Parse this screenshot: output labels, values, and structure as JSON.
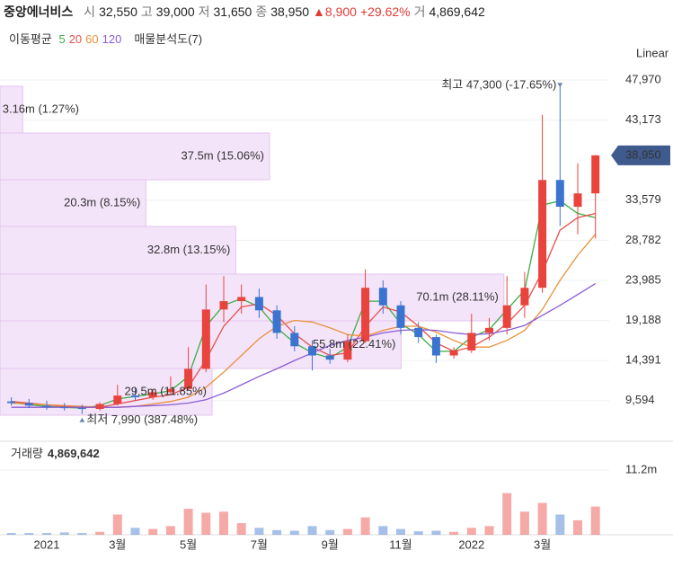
{
  "header": {
    "name": "중앙에너비스",
    "quotes": [
      {
        "label": "시",
        "value": "32,550"
      },
      {
        "label": "고",
        "value": "39,000"
      },
      {
        "label": "저",
        "value": "31,650"
      },
      {
        "label": "종",
        "value": "38,950"
      }
    ],
    "change": "▲8,900",
    "change_pct": "+29.62%",
    "volume": {
      "label": "거",
      "value": "4,869,642"
    }
  },
  "chart_data": {
    "type": "candlestick",
    "ma_label": "이동평균",
    "profile_label": "매물분석도(7)",
    "scale_label": "Linear",
    "categories": [
      null,
      null,
      "2021",
      null,
      null,
      null,
      "3월",
      null,
      null,
      null,
      "5월",
      null,
      null,
      null,
      "7월",
      null,
      null,
      null,
      "9월",
      null,
      null,
      null,
      "11월",
      null,
      null,
      null,
      "2022",
      null,
      null,
      null,
      "3월",
      null,
      null,
      null
    ],
    "up_color": "#e8433d",
    "down_color": "#3b74d0",
    "candles": {
      "open": [
        9500,
        9300,
        9000,
        8800,
        8700,
        8600,
        9200,
        10200,
        10000,
        10600,
        11000,
        13400,
        20500,
        21500,
        22000,
        20400,
        17700,
        16100,
        15000,
        14500,
        16700,
        23100,
        21000,
        18300,
        17200,
        15000,
        15600,
        17700,
        18300,
        21000,
        23100,
        36000,
        32800,
        34400
      ],
      "high": [
        10000,
        9800,
        9600,
        9300,
        9100,
        9400,
        11500,
        11200,
        11000,
        12500,
        16000,
        23500,
        24500,
        23500,
        23000,
        21000,
        18500,
        16800,
        15800,
        17500,
        25300,
        24000,
        21500,
        19000,
        17500,
        16000,
        20000,
        19500,
        24500,
        25000,
        43800,
        47300,
        38000,
        39000
      ],
      "low": [
        9000,
        8700,
        8500,
        8400,
        7990,
        8400,
        9000,
        9600,
        9700,
        10300,
        10800,
        13000,
        19000,
        20000,
        19500,
        17000,
        15500,
        13200,
        14000,
        14200,
        16500,
        20000,
        17500,
        16500,
        14100,
        14600,
        15300,
        16800,
        17500,
        19500,
        22500,
        30500,
        29500,
        29000
      ],
      "close": [
        9300,
        9000,
        8800,
        8700,
        8600,
        9200,
        10200,
        10000,
        10600,
        11000,
        13400,
        20500,
        21500,
        22000,
        20400,
        17700,
        16100,
        15000,
        14500,
        16700,
        23100,
        21000,
        18300,
        17200,
        15000,
        15600,
        17700,
        18300,
        21000,
        23100,
        36000,
        32800,
        34400,
        38950
      ]
    },
    "series": [
      {
        "name": "5",
        "color": "#3cae45",
        "values": [
          9400,
          9100,
          8900,
          8800,
          8700,
          9000,
          9800,
          10100,
          10400,
          10800,
          12500,
          18500,
          21000,
          21800,
          20800,
          18300,
          16500,
          15300,
          14700,
          16000,
          21500,
          21500,
          18800,
          17500,
          15500,
          15500,
          17200,
          18100,
          20500,
          22800,
          33000,
          33500,
          32000,
          31500
        ]
      },
      {
        "name": "20",
        "color": "#e6504e",
        "values": [
          9500,
          9300,
          9100,
          8900,
          8800,
          8800,
          9200,
          9600,
          10000,
          10300,
          11200,
          14500,
          18500,
          20800,
          21200,
          19800,
          17600,
          16000,
          15000,
          15300,
          18500,
          20800,
          20200,
          18500,
          16500,
          15500,
          16000,
          17200,
          18800,
          21000,
          25000,
          30000,
          31500,
          32000
        ]
      },
      {
        "name": "60",
        "color": "#e8913a",
        "values": [
          9300,
          9200,
          9100,
          9000,
          8900,
          8800,
          8800,
          8900,
          9200,
          9500,
          10000,
          11200,
          13000,
          15000,
          17000,
          18500,
          19200,
          19000,
          18300,
          17500,
          17300,
          18000,
          18500,
          18500,
          17800,
          16800,
          16000,
          16000,
          16800,
          18000,
          20500,
          24000,
          27000,
          29500
        ]
      },
      {
        "name": "120",
        "color": "#8b5cd6",
        "values": [
          8800,
          8800,
          8800,
          8800,
          8800,
          8800,
          8800,
          8900,
          9000,
          9100,
          9300,
          9700,
          10500,
          11500,
          12500,
          13400,
          14400,
          15300,
          16200,
          16800,
          17200,
          17700,
          18000,
          18100,
          18000,
          17700,
          17500,
          17600,
          18000,
          18600,
          19800,
          21000,
          22300,
          23600
        ]
      }
    ],
    "ylim": [
      4839,
      51627
    ],
    "yticks": [
      {
        "value": 47970,
        "label": "47,970"
      },
      {
        "value": 43173,
        "label": "43,173"
      },
      {
        "value": 33579,
        "label": "33,579"
      },
      {
        "value": 28782,
        "label": "28,782"
      },
      {
        "value": 23985,
        "label": "23,985"
      },
      {
        "value": 19188,
        "label": "19,188"
      },
      {
        "value": 14391,
        "label": "14,391"
      },
      {
        "value": 9594,
        "label": "9,594"
      }
    ],
    "grid": true,
    "current_price": {
      "value": 38950,
      "label": "38,950"
    },
    "annotations": {
      "high": "최고 47,300 (-17.65%)",
      "low": "최저 7,990 (387.48%)"
    },
    "volume_profile": {
      "color": "#f4e4f9",
      "bins": [
        7851,
        13443,
        19144,
        24737,
        30438,
        36031,
        41624,
        47217
      ],
      "values": [
        29.5,
        55.8,
        70.1,
        32.8,
        20.3,
        37.5,
        3.16
      ],
      "value_labels": [
        "29.5m (11.85%)",
        "55.8m (22.41%)",
        "70.1m (28.11%)",
        "32.8m (13.15%)",
        "20.3m (8.15%)",
        "37.5m (15.06%)",
        "3.16m (1.27%)"
      ]
    },
    "volume": {
      "title": "거래량",
      "latest_label": "4,869,642",
      "values": [
        0.3,
        0.3,
        0.3,
        0.4,
        0.3,
        0.5,
        3.5,
        1.2,
        1.0,
        1.5,
        4.5,
        3.8,
        4.0,
        2.0,
        1.2,
        0.8,
        0.7,
        1.5,
        0.8,
        1.0,
        3.0,
        1.5,
        1.0,
        0.6,
        0.7,
        0.5,
        1.2,
        1.5,
        7.2,
        4.0,
        5.5,
        3.5,
        2.5,
        4.869642
      ],
      "ylim": [
        0,
        16
      ],
      "yticks": [
        {
          "value": 11.2,
          "label": "11.2m"
        }
      ]
    }
  }
}
